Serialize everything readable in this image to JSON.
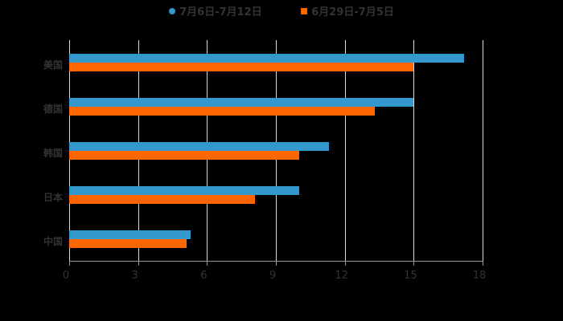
{
  "chart_data": {
    "type": "bar",
    "orientation": "horizontal",
    "title": "",
    "xlabel": "",
    "ylabel": "",
    "categories": [
      "美国",
      "德国",
      "韩国",
      "日本",
      "中国"
    ],
    "series": [
      {
        "name": "7月6日-7月12日",
        "color": "#3399cc",
        "marker": "circle",
        "values": [
          17.2,
          15.0,
          11.3,
          10.0,
          5.3
        ]
      },
      {
        "name": "6月29日-7月5日",
        "color": "#ff6600",
        "marker": "square",
        "values": [
          15.0,
          13.3,
          10.0,
          8.1,
          5.1
        ]
      }
    ],
    "xlim": [
      0,
      18
    ],
    "xticks": [
      "0",
      "3",
      "6",
      "9",
      "12",
      "15",
      "18"
    ],
    "grid": true,
    "legend_position": "top"
  },
  "legend": {
    "items": [
      {
        "label": "7月6日-7月12日",
        "color": "#3399cc"
      },
      {
        "label": "6月29日-7月5日",
        "color": "#ff6600"
      }
    ]
  }
}
